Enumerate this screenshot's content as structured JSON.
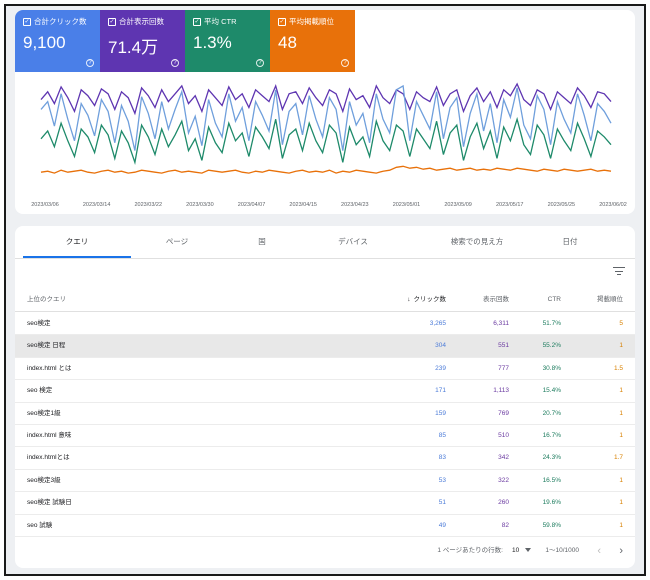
{
  "metrics": [
    {
      "label": "合計クリック数",
      "value": "9,100",
      "color": "#4a7fe8"
    },
    {
      "label": "合計表示回数",
      "value": "71.4万",
      "color": "#5e35b1"
    },
    {
      "label": "平均 CTR",
      "value": "1.3%",
      "color": "#1e8a6a"
    },
    {
      "label": "平均掲載順位",
      "value": "48",
      "color": "#e8710a"
    }
  ],
  "chart_data": {
    "type": "line",
    "x_ticks": [
      "2023/03/06",
      "2023/03/14",
      "2023/03/22",
      "2023/03/30",
      "2023/04/07",
      "2023/04/15",
      "2023/04/23",
      "2023/05/01",
      "2023/05/09",
      "2023/05/17",
      "2023/05/25",
      "2023/06/02"
    ],
    "grid": false,
    "legend": "none",
    "series": [
      {
        "name": "合計表示回数",
        "color": "#5e35b1",
        "values": [
          0.82,
          0.9,
          0.78,
          0.95,
          0.84,
          0.7,
          0.92,
          0.86,
          0.76,
          0.93,
          0.88,
          0.72,
          0.9,
          0.84,
          0.68,
          0.94,
          0.86,
          0.74,
          0.92,
          0.8,
          0.88,
          0.96,
          0.78,
          0.86,
          0.7,
          0.92,
          0.84,
          0.76,
          0.95,
          0.82,
          0.88,
          0.74,
          0.92,
          0.86,
          0.8,
          0.96,
          0.72,
          0.88,
          0.9,
          0.78,
          0.94,
          0.84,
          0.76,
          0.92,
          0.88,
          0.7,
          0.93,
          0.82,
          0.86,
          0.74,
          0.96,
          0.84,
          0.78,
          0.92,
          0.88,
          0.72,
          0.9,
          0.84,
          0.8,
          0.95,
          0.76,
          0.88,
          0.92,
          0.7,
          0.86,
          0.94,
          0.8,
          0.9,
          0.74,
          0.92,
          0.86,
          0.98,
          0.82,
          0.76,
          0.92,
          0.88,
          0.72,
          0.9,
          0.84,
          0.78,
          0.94,
          0.86,
          0.74,
          0.9,
          0.88,
          0.8
        ]
      },
      {
        "name": "合計クリック数",
        "color": "#6f9fdc",
        "values": [
          0.72,
          0.8,
          0.55,
          0.88,
          0.62,
          0.4,
          0.78,
          0.66,
          0.45,
          0.82,
          0.7,
          0.38,
          0.76,
          0.6,
          0.3,
          0.85,
          0.68,
          0.42,
          0.8,
          0.52,
          0.72,
          0.9,
          0.48,
          0.65,
          0.35,
          0.82,
          0.58,
          0.44,
          0.88,
          0.6,
          0.74,
          0.4,
          0.8,
          0.66,
          0.5,
          0.92,
          0.36,
          0.7,
          0.78,
          0.46,
          0.86,
          0.62,
          0.44,
          0.84,
          0.72,
          0.3,
          0.8,
          0.56,
          0.68,
          0.38,
          0.88,
          0.62,
          0.48,
          0.92,
          0.96,
          0.4,
          0.8,
          0.66,
          0.52,
          0.9,
          0.42,
          0.74,
          0.84,
          0.34,
          0.68,
          0.88,
          0.5,
          0.78,
          0.38,
          0.82,
          0.64,
          0.94,
          0.56,
          0.42,
          0.86,
          0.72,
          0.36,
          0.8,
          0.62,
          0.48,
          0.88,
          0.66,
          0.4,
          0.78,
          0.7,
          0.58
        ]
      },
      {
        "name": "平均 CTR",
        "color": "#1e8a6a",
        "values": [
          0.42,
          0.5,
          0.34,
          0.58,
          0.4,
          0.24,
          0.52,
          0.44,
          0.28,
          0.56,
          0.46,
          0.22,
          0.5,
          0.38,
          0.18,
          0.56,
          0.44,
          0.26,
          0.52,
          0.34,
          0.46,
          0.6,
          0.3,
          0.42,
          0.2,
          0.54,
          0.38,
          0.28,
          0.58,
          0.4,
          0.48,
          0.24,
          0.54,
          0.44,
          0.32,
          0.62,
          0.22,
          0.46,
          0.52,
          0.3,
          0.58,
          0.4,
          0.28,
          0.56,
          0.48,
          0.18,
          0.54,
          0.36,
          0.44,
          0.24,
          0.6,
          0.4,
          0.3,
          0.56,
          0.5,
          0.24,
          0.52,
          0.42,
          0.32,
          0.6,
          0.26,
          0.48,
          0.56,
          0.2,
          0.44,
          0.58,
          0.32,
          0.5,
          0.22,
          0.54,
          0.4,
          0.62,
          0.36,
          0.26,
          0.56,
          0.46,
          0.22,
          0.52,
          0.4,
          0.3,
          0.58,
          0.42,
          0.24,
          0.5,
          0.44,
          0.36
        ]
      },
      {
        "name": "平均掲載順位",
        "color": "#e8710a",
        "values": [
          0.08,
          0.09,
          0.07,
          0.1,
          0.08,
          0.09,
          0.1,
          0.08,
          0.07,
          0.09,
          0.1,
          0.08,
          0.09,
          0.07,
          0.08,
          0.1,
          0.09,
          0.08,
          0.07,
          0.09,
          0.1,
          0.08,
          0.09,
          0.08,
          0.07,
          0.1,
          0.09,
          0.08,
          0.09,
          0.1,
          0.08,
          0.07,
          0.09,
          0.08,
          0.1,
          0.09,
          0.08,
          0.07,
          0.09,
          0.1,
          0.08,
          0.09,
          0.08,
          0.1,
          0.07,
          0.09,
          0.08,
          0.1,
          0.09,
          0.08,
          0.07,
          0.09,
          0.1,
          0.13,
          0.14,
          0.12,
          0.13,
          0.11,
          0.12,
          0.1,
          0.11,
          0.12,
          0.1,
          0.11,
          0.12,
          0.1,
          0.11,
          0.1,
          0.12,
          0.11,
          0.1,
          0.12,
          0.11,
          0.1,
          0.09,
          0.11,
          0.1,
          0.09,
          0.11,
          0.1,
          0.09,
          0.1,
          0.11,
          0.09,
          0.1,
          0.09
        ]
      }
    ]
  },
  "tabs": [
    "クエリ",
    "ページ",
    "国",
    "デバイス",
    "検索での見え方",
    "日付"
  ],
  "active_tab": "クエリ",
  "table": {
    "headers": {
      "query": "上位のクエリ",
      "clicks": "クリック数",
      "impressions": "表示回数",
      "ctr": "CTR",
      "position": "掲載順位"
    },
    "sort_indicator": "↓",
    "rows": [
      {
        "query": "seo検定",
        "clicks": "3,265",
        "impressions": "6,311",
        "ctr": "51.7%",
        "position": "5"
      },
      {
        "query": "seo検定 日程",
        "clicks": "304",
        "impressions": "551",
        "ctr": "55.2%",
        "position": "1"
      },
      {
        "query": "index.html とは",
        "clicks": "239",
        "impressions": "777",
        "ctr": "30.8%",
        "position": "1.5"
      },
      {
        "query": "seo 検定",
        "clicks": "171",
        "impressions": "1,113",
        "ctr": "15.4%",
        "position": "1"
      },
      {
        "query": "seo検定1級",
        "clicks": "159",
        "impressions": "769",
        "ctr": "20.7%",
        "position": "1"
      },
      {
        "query": "index.html 意味",
        "clicks": "85",
        "impressions": "510",
        "ctr": "16.7%",
        "position": "1"
      },
      {
        "query": "index.htmlとは",
        "clicks": "83",
        "impressions": "342",
        "ctr": "24.3%",
        "position": "1.7"
      },
      {
        "query": "seo検定3級",
        "clicks": "53",
        "impressions": "322",
        "ctr": "16.5%",
        "position": "1"
      },
      {
        "query": "seo検定 試験日",
        "clicks": "51",
        "impressions": "260",
        "ctr": "19.6%",
        "position": "1"
      },
      {
        "query": "seo 試験",
        "clicks": "49",
        "impressions": "82",
        "ctr": "59.8%",
        "position": "1"
      }
    ]
  },
  "pagination": {
    "rows_per_page_label": "1 ページあたりの行数:",
    "rows_per_page": "10",
    "range": "1〜10/1000",
    "prev": "‹",
    "next": "›"
  },
  "icons": {
    "check": "check-icon",
    "help": "help-icon",
    "filter": "filter-icon",
    "dropdown": "dropdown-arrow-icon"
  }
}
